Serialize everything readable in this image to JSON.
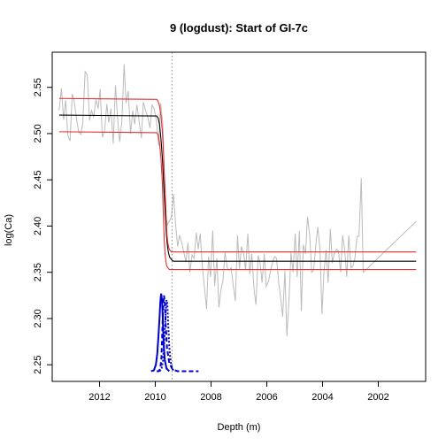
{
  "chart_data": {
    "type": "line",
    "title": "9 (logdust): Start of GI-7c",
    "xlabel": "Depth (m)",
    "ylabel": "log(Ca)",
    "xlim": [
      2013.7,
      2000.3
    ],
    "ylim": [
      2.232,
      2.588
    ],
    "xticks": [
      2012,
      2010,
      2008,
      2006,
      2004,
      2002
    ],
    "yticks": [
      2.25,
      2.3,
      2.35,
      2.4,
      2.45,
      2.5,
      2.55
    ],
    "grid": false,
    "legend": "none",
    "vline": {
      "x": 2009.4,
      "style": "dotted",
      "color": "#888888"
    },
    "raw_series": {
      "color": "#bbbbbb",
      "x": [
        2013.45,
        2013.37,
        2013.29,
        2013.22,
        2013.14,
        2013.06,
        2012.98,
        2012.91,
        2012.83,
        2012.75,
        2012.67,
        2012.6,
        2012.52,
        2012.44,
        2012.36,
        2012.29,
        2012.21,
        2012.13,
        2012.05,
        2011.98,
        2011.9,
        2011.82,
        2011.74,
        2011.67,
        2011.59,
        2011.51,
        2011.43,
        2011.36,
        2011.28,
        2011.2,
        2011.12,
        2011.05,
        2010.97,
        2010.89,
        2010.81,
        2010.74,
        2010.66,
        2010.58,
        2010.5,
        2010.43,
        2010.35,
        2010.27,
        2010.19,
        2010.12,
        2010.04,
        2009.96,
        2009.88,
        2009.81,
        2009.73,
        2009.65,
        2009.57,
        2009.5,
        2009.42,
        2009.35,
        2009.27,
        2009.2,
        2009.13,
        2009.05,
        2008.98,
        2008.9,
        2008.83,
        2008.76,
        2008.68,
        2008.61,
        2008.53,
        2008.46,
        2008.39,
        2008.31,
        2008.24,
        2008.16,
        2008.09,
        2008.02,
        2007.94,
        2007.87,
        2007.79,
        2007.72,
        2007.65,
        2007.57,
        2007.5,
        2007.42,
        2007.35,
        2007.28,
        2007.2,
        2007.13,
        2007.05,
        2006.98,
        2006.91,
        2006.83,
        2006.76,
        2006.68,
        2006.61,
        2006.54,
        2006.46,
        2006.39,
        2006.31,
        2006.24,
        2006.17,
        2006.09,
        2006.02,
        2005.94,
        2005.87,
        2005.8,
        2005.72,
        2005.65,
        2005.57,
        2005.5,
        2005.43,
        2005.35,
        2005.28,
        2005.2,
        2005.13,
        2005.06,
        2004.98,
        2004.91,
        2004.83,
        2004.76,
        2004.69,
        2004.61,
        2004.54,
        2004.46,
        2004.39,
        2004.32,
        2004.24,
        2004.17,
        2004.09,
        2004.02,
        2003.95,
        2003.87,
        2003.8,
        2003.72,
        2003.65,
        2003.58,
        2003.5,
        2003.43,
        2003.35,
        2003.28,
        2003.21,
        2003.13,
        2003.06,
        2002.98,
        2002.91,
        2002.84,
        2002.76,
        2002.69,
        2002.61,
        2002.54,
        2000.64
      ],
      "y": [
        2.525,
        2.549,
        2.515,
        2.536,
        2.498,
        2.492,
        2.543,
        2.535,
        2.516,
        2.502,
        2.499,
        2.512,
        2.567,
        2.563,
        2.514,
        2.525,
        2.518,
        2.537,
        2.527,
        2.548,
        2.496,
        2.503,
        2.532,
        2.512,
        2.527,
        2.489,
        2.552,
        2.519,
        2.491,
        2.513,
        2.575,
        2.533,
        2.546,
        2.5,
        2.525,
        2.51,
        2.531,
        2.513,
        2.495,
        2.534,
        2.525,
        2.518,
        2.506,
        2.531,
        2.527,
        2.513,
        2.487,
        2.533,
        2.511,
        2.42,
        2.401,
        2.405,
        2.41,
        2.435,
        2.401,
        2.378,
        2.39,
        2.382,
        2.372,
        2.361,
        2.382,
        2.35,
        2.369,
        2.365,
        2.393,
        2.375,
        2.392,
        2.355,
        2.335,
        2.31,
        2.367,
        2.345,
        2.395,
        2.335,
        2.365,
        2.312,
        2.33,
        2.342,
        2.372,
        2.355,
        2.352,
        2.355,
        2.335,
        2.319,
        2.39,
        2.354,
        2.378,
        2.37,
        2.352,
        2.392,
        2.348,
        2.37,
        2.332,
        2.315,
        2.368,
        2.36,
        2.339,
        2.37,
        2.335,
        2.34,
        2.351,
        2.36,
        2.367,
        2.365,
        2.338,
        2.322,
        2.302,
        2.352,
        2.281,
        2.322,
        2.372,
        2.35,
        2.392,
        2.345,
        2.395,
        2.308,
        2.38,
        2.37,
        2.41,
        2.39,
        2.35,
        2.352,
        2.38,
        2.399,
        2.374,
        2.305,
        2.35,
        2.374,
        2.339,
        2.397,
        2.36,
        2.37,
        2.375,
        2.373,
        2.35,
        2.39,
        2.376,
        2.345,
        2.39,
        2.355,
        2.357,
        2.365,
        2.389,
        2.389,
        2.452,
        2.35,
        2.405
      ]
    },
    "fit_series": [
      {
        "role": "mean",
        "color": "#000000",
        "x": [
          2013.45,
          2009.95,
          2009.9,
          2009.85,
          2009.8,
          2009.75,
          2009.72,
          2009.7,
          2009.68,
          2009.65,
          2009.62,
          2009.6,
          2009.58,
          2009.55,
          2009.52,
          2009.5,
          2009.48,
          2009.45,
          2009.42,
          2009.4,
          2009.35,
          2009.3,
          2009.25,
          2009.2,
          2000.64
        ],
        "y": [
          2.52,
          2.519,
          2.517,
          2.51,
          2.495,
          2.475,
          2.458,
          2.445,
          2.433,
          2.417,
          2.4,
          2.39,
          2.383,
          2.375,
          2.37,
          2.368,
          2.366,
          2.365,
          2.364,
          2.363,
          2.362,
          2.362,
          2.362,
          2.362,
          2.362
        ]
      },
      {
        "role": "upper",
        "color": "#e53030",
        "x": [
          2013.45,
          2009.95,
          2009.9,
          2009.85,
          2009.8,
          2009.75,
          2009.72,
          2009.7,
          2009.68,
          2009.65,
          2009.62,
          2009.6,
          2009.58,
          2009.55,
          2009.52,
          2009.5,
          2009.48,
          2009.45,
          2009.42,
          2009.4,
          2009.35,
          2009.3,
          2009.25,
          2009.2,
          2000.64
        ],
        "y": [
          2.538,
          2.537,
          2.535,
          2.53,
          2.52,
          2.503,
          2.488,
          2.475,
          2.458,
          2.44,
          2.418,
          2.4,
          2.39,
          2.382,
          2.377,
          2.375,
          2.374,
          2.373,
          2.372,
          2.372,
          2.372,
          2.372,
          2.372,
          2.372,
          2.372
        ]
      },
      {
        "role": "lower",
        "color": "#e53030",
        "x": [
          2013.45,
          2009.95,
          2009.9,
          2009.85,
          2009.8,
          2009.75,
          2009.72,
          2009.7,
          2009.68,
          2009.65,
          2009.62,
          2009.6,
          2009.58,
          2009.55,
          2009.52,
          2009.5,
          2009.48,
          2009.45,
          2009.42,
          2009.4,
          2009.35,
          2009.3,
          2009.25,
          2009.2,
          2000.64
        ],
        "y": [
          2.502,
          2.501,
          2.499,
          2.49,
          2.474,
          2.448,
          2.42,
          2.402,
          2.385,
          2.37,
          2.362,
          2.358,
          2.356,
          2.355,
          2.354,
          2.353,
          2.353,
          2.353,
          2.353,
          2.353,
          2.353,
          2.353,
          2.353,
          2.353,
          2.353
        ]
      }
    ],
    "density_series": [
      {
        "style": "solid",
        "color": "#0000cc",
        "x": [
          2010.15,
          2010.05,
          2009.98,
          2009.93,
          2009.89,
          2009.85,
          2009.82,
          2009.79,
          2009.76,
          2009.73,
          2009.7,
          2009.66,
          2009.6,
          2009.5
        ],
        "y": [
          2.243,
          2.244,
          2.25,
          2.262,
          2.28,
          2.3,
          2.318,
          2.327,
          2.32,
          2.298,
          2.272,
          2.255,
          2.246,
          2.243
        ]
      },
      {
        "style": "dashed",
        "color": "#0000cc",
        "x": [
          2009.95,
          2009.88,
          2009.82,
          2009.78,
          2009.75,
          2009.72,
          2009.69,
          2009.66,
          2009.63,
          2009.58,
          2009.5,
          2009.4,
          2009.3,
          2009.2,
          2009.0,
          2008.7,
          2008.45
        ],
        "y": [
          2.243,
          2.243,
          2.246,
          2.258,
          2.285,
          2.312,
          2.325,
          2.318,
          2.295,
          2.268,
          2.252,
          2.246,
          2.244,
          2.243,
          2.243,
          2.243,
          2.243
        ]
      },
      {
        "style": "dotted",
        "color": "#0000cc",
        "x": [
          2009.85,
          2009.78,
          2009.72,
          2009.67,
          2009.63,
          2009.6,
          2009.57,
          2009.54,
          2009.5,
          2009.45,
          2009.38,
          2009.3
        ],
        "y": [
          2.243,
          2.245,
          2.255,
          2.28,
          2.305,
          2.32,
          2.316,
          2.295,
          2.27,
          2.253,
          2.245,
          2.243
        ]
      }
    ]
  }
}
